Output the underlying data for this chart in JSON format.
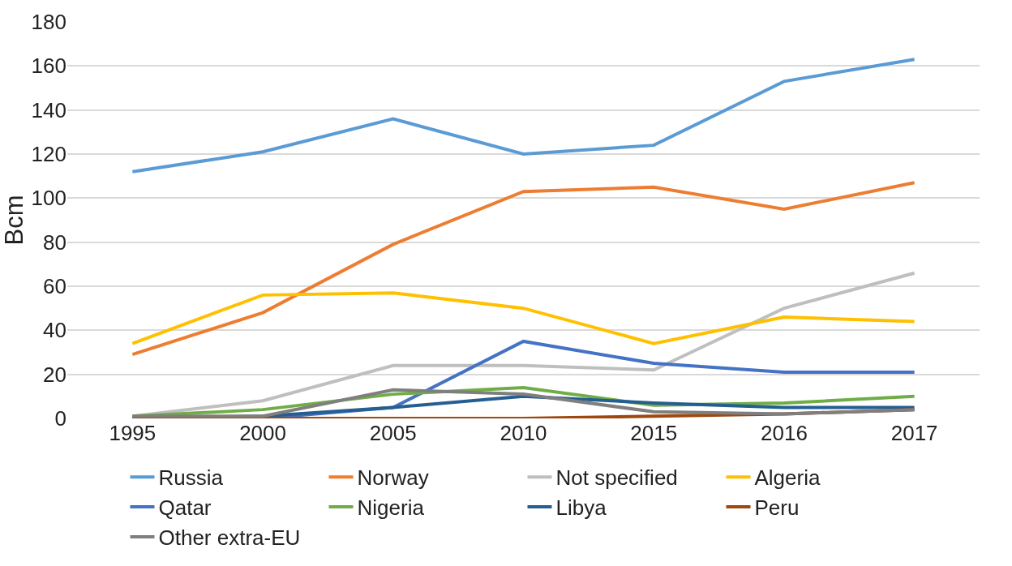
{
  "chart_data": {
    "type": "line",
    "ylabel": "Bcm",
    "categories": [
      "1995",
      "2000",
      "2005",
      "2010",
      "2015",
      "2016",
      "2017"
    ],
    "ylim": [
      0,
      180
    ],
    "yticks": [
      0,
      20,
      40,
      60,
      80,
      100,
      120,
      140,
      160,
      180
    ],
    "grid": "y",
    "legend": "bottom",
    "marker": "none",
    "line_style": "solid",
    "series": [
      {
        "name": "Russia",
        "color": "#5b9bd5",
        "values": [
          112,
          121,
          136,
          120,
          124,
          153,
          163
        ]
      },
      {
        "name": "Norway",
        "color": "#ed7d31",
        "values": [
          29,
          48,
          79,
          103,
          105,
          95,
          107
        ]
      },
      {
        "name": "Not specified",
        "color": "#bfbfbf",
        "values": [
          1,
          8,
          24,
          24,
          22,
          50,
          66
        ]
      },
      {
        "name": "Algeria",
        "color": "#ffc000",
        "values": [
          34,
          56,
          57,
          50,
          34,
          46,
          44
        ]
      },
      {
        "name": "Qatar",
        "color": "#4472c4",
        "values": [
          0,
          0,
          5,
          35,
          25,
          21,
          21
        ]
      },
      {
        "name": "Nigeria",
        "color": "#70ad47",
        "values": [
          1,
          4,
          11,
          14,
          6,
          7,
          10
        ]
      },
      {
        "name": "Libya",
        "color": "#255e91",
        "values": [
          0,
          1,
          5,
          10,
          7,
          5,
          5
        ]
      },
      {
        "name": "Peru",
        "color": "#9e480e",
        "values": [
          0,
          0,
          0,
          0,
          1,
          2,
          4
        ]
      },
      {
        "name": "Other extra-EU",
        "color": "#7f7f7f",
        "values": [
          1,
          1,
          13,
          11,
          3,
          2,
          4
        ]
      }
    ]
  }
}
